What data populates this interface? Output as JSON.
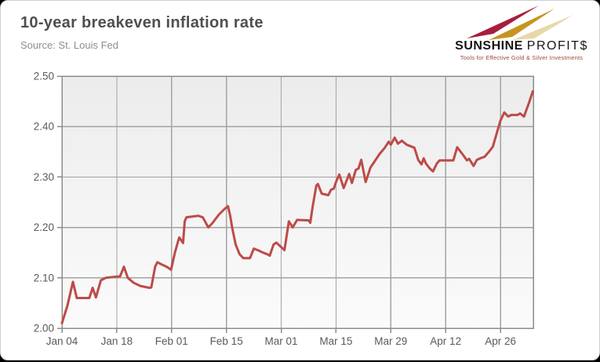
{
  "page": {
    "title": "10-year breakeven inflation rate",
    "source": "Source: St. Louis Fed"
  },
  "logo": {
    "brand_bold": "SUNSHINE",
    "brand_light": "PROFIT$",
    "tagline": "Tools for Effective Gold & Silver Investments",
    "colors": {
      "arrow_red": "#a61e3e",
      "arrow_gold": "#c79420",
      "arrow_pale": "#e7d8aa",
      "tagline": "#9c4a3a",
      "text": "#161616"
    }
  },
  "chart_data": {
    "type": "line",
    "title": "10-year breakeven inflation rate",
    "xlabel": "",
    "ylabel": "",
    "ylim": [
      2.0,
      2.5
    ],
    "x_domain_days": [
      0,
      86
    ],
    "grid": true,
    "legend_position": "none",
    "y_ticks": [
      {
        "value": 2.0,
        "label": "2.00"
      },
      {
        "value": 2.1,
        "label": "2.10"
      },
      {
        "value": 2.2,
        "label": "2.20"
      },
      {
        "value": 2.3,
        "label": "2.30"
      },
      {
        "value": 2.4,
        "label": "2.40"
      },
      {
        "value": 2.5,
        "label": "2.50"
      }
    ],
    "x_ticks": [
      {
        "day": 0,
        "label": "Jan 04"
      },
      {
        "day": 10,
        "label": "Jan 18"
      },
      {
        "day": 20,
        "label": "Feb 01"
      },
      {
        "day": 30,
        "label": "Feb 15"
      },
      {
        "day": 40,
        "label": "Mar 01"
      },
      {
        "day": 50,
        "label": "Mar 15"
      },
      {
        "day": 60,
        "label": "Mar 29"
      },
      {
        "day": 70,
        "label": "Apr 12"
      },
      {
        "day": 80,
        "label": "Apr 26"
      }
    ],
    "colors": {
      "grid": "#a3a3a3",
      "frame": "#8c8c8c",
      "plot_bg_top": "#ececec",
      "plot_bg_bottom": "#fbfbfb",
      "tick_text": "#5a5a5a"
    },
    "series": [
      {
        "name": "10-year breakeven inflation rate",
        "color": "#bd4b48",
        "points": [
          [
            0,
            2.01
          ],
          [
            1,
            2.045
          ],
          [
            2,
            2.092
          ],
          [
            2.7,
            2.06
          ],
          [
            5,
            2.06
          ],
          [
            5.6,
            2.08
          ],
          [
            6.2,
            2.061
          ],
          [
            7.1,
            2.095
          ],
          [
            8,
            2.1
          ],
          [
            10.6,
            2.103
          ],
          [
            11.3,
            2.122
          ],
          [
            12,
            2.1
          ],
          [
            13.1,
            2.09
          ],
          [
            14.3,
            2.084
          ],
          [
            16,
            2.08
          ],
          [
            16.3,
            2.081
          ],
          [
            17,
            2.122
          ],
          [
            17.4,
            2.131
          ],
          [
            18.1,
            2.127
          ],
          [
            19.1,
            2.122
          ],
          [
            19.9,
            2.116
          ],
          [
            20.6,
            2.15
          ],
          [
            21.3,
            2.177
          ],
          [
            21.4,
            2.18
          ],
          [
            22.1,
            2.169
          ],
          [
            22.4,
            2.212
          ],
          [
            22.7,
            2.22
          ],
          [
            24.9,
            2.223
          ],
          [
            25.7,
            2.22
          ],
          [
            26.7,
            2.2
          ],
          [
            27.4,
            2.208
          ],
          [
            28.6,
            2.225
          ],
          [
            29.6,
            2.236
          ],
          [
            30.3,
            2.242
          ],
          [
            30.7,
            2.223
          ],
          [
            31.1,
            2.197
          ],
          [
            31.7,
            2.166
          ],
          [
            32.4,
            2.147
          ],
          [
            33.1,
            2.139
          ],
          [
            34.3,
            2.139
          ],
          [
            35,
            2.158
          ],
          [
            35.7,
            2.155
          ],
          [
            36.7,
            2.15
          ],
          [
            37.4,
            2.147
          ],
          [
            37.9,
            2.144
          ],
          [
            38.6,
            2.166
          ],
          [
            39.1,
            2.17
          ],
          [
            39.9,
            2.162
          ],
          [
            40.6,
            2.155
          ],
          [
            41.4,
            2.212
          ],
          [
            42.1,
            2.2
          ],
          [
            42.9,
            2.215
          ],
          [
            45,
            2.214
          ],
          [
            45.3,
            2.209
          ],
          [
            45.7,
            2.239
          ],
          [
            46.4,
            2.283
          ],
          [
            46.7,
            2.286
          ],
          [
            47.4,
            2.267
          ],
          [
            48.6,
            2.264
          ],
          [
            49.1,
            2.275
          ],
          [
            49.6,
            2.277
          ],
          [
            50,
            2.29
          ],
          [
            50.6,
            2.305
          ],
          [
            51.4,
            2.278
          ],
          [
            52.4,
            2.306
          ],
          [
            52.9,
            2.288
          ],
          [
            53.6,
            2.314
          ],
          [
            54.1,
            2.317
          ],
          [
            54.6,
            2.334
          ],
          [
            55.4,
            2.29
          ],
          [
            56.3,
            2.319
          ],
          [
            57,
            2.33
          ],
          [
            57.9,
            2.345
          ],
          [
            58.9,
            2.358
          ],
          [
            59.6,
            2.37
          ],
          [
            60,
            2.364
          ],
          [
            60.7,
            2.378
          ],
          [
            61.3,
            2.366
          ],
          [
            62,
            2.372
          ],
          [
            62.9,
            2.364
          ],
          [
            63.6,
            2.361
          ],
          [
            64.3,
            2.358
          ],
          [
            65,
            2.334
          ],
          [
            65.6,
            2.325
          ],
          [
            66,
            2.337
          ],
          [
            66.4,
            2.327
          ],
          [
            67.1,
            2.317
          ],
          [
            67.7,
            2.311
          ],
          [
            68.4,
            2.327
          ],
          [
            68.9,
            2.333
          ],
          [
            71.4,
            2.333
          ],
          [
            72.1,
            2.359
          ],
          [
            73.1,
            2.345
          ],
          [
            73.9,
            2.333
          ],
          [
            74.3,
            2.336
          ],
          [
            75.1,
            2.322
          ],
          [
            75.7,
            2.334
          ],
          [
            76.3,
            2.337
          ],
          [
            77.1,
            2.34
          ],
          [
            77.9,
            2.35
          ],
          [
            78.6,
            2.36
          ],
          [
            79.6,
            2.397
          ],
          [
            80,
            2.412
          ],
          [
            80.7,
            2.428
          ],
          [
            81.4,
            2.42
          ],
          [
            82,
            2.423
          ],
          [
            83.1,
            2.423
          ],
          [
            83.6,
            2.426
          ],
          [
            84.3,
            2.42
          ],
          [
            85.3,
            2.45
          ],
          [
            85.9,
            2.47
          ]
        ]
      }
    ]
  }
}
